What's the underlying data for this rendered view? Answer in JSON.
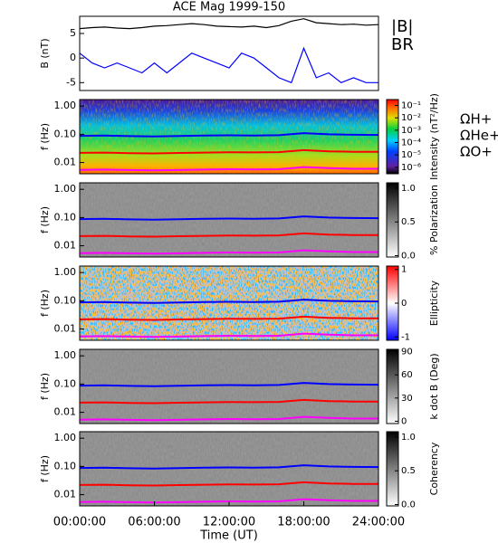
{
  "chart_data": [
    {
      "type": "line",
      "title": "ACE Mag 1999-150",
      "y_label": "B (nT)",
      "xlim": [
        0,
        24
      ],
      "ylim": [
        -6.6,
        8.5
      ],
      "yticks": [
        -5,
        0,
        5
      ],
      "x": [
        0,
        1,
        2,
        3,
        4,
        5,
        6,
        7,
        8,
        9,
        10,
        11,
        12,
        13,
        14,
        15,
        16,
        17,
        18,
        19,
        20,
        21,
        22,
        23,
        24
      ],
      "series": [
        {
          "name": "|B|",
          "color": "#000000",
          "values": [
            6,
            6.2,
            6.3,
            6.1,
            6,
            6.2,
            6.5,
            6.6,
            6.8,
            7,
            6.8,
            6.5,
            6.4,
            6.3,
            6.5,
            6.2,
            6.6,
            7.5,
            8,
            7.2,
            7,
            6.8,
            6.9,
            6.7,
            6.8
          ]
        },
        {
          "name": "BR",
          "color": "#0000ff",
          "values": [
            1,
            -1,
            -2,
            -1,
            -2,
            -3,
            -1,
            -3,
            -1,
            1,
            0,
            -1,
            -2,
            1,
            0,
            -2,
            -4,
            -5,
            2,
            -4,
            -3,
            -5,
            -4,
            -5,
            -5
          ]
        }
      ]
    },
    {
      "type": "spectrogram",
      "y_label": "f (Hz)",
      "log_y": true,
      "xlim": [
        0,
        24
      ],
      "ylim": [
        0.004,
        1.7
      ],
      "yticks": [
        {
          "value": 1,
          "label": "1.00"
        },
        {
          "value": 0.1,
          "label": "0.10"
        },
        {
          "value": 0.01,
          "label": "0.01"
        }
      ],
      "colormap": "rainbow",
      "colorbar_label": "Intensity (nT²/Hz)",
      "log_c": true,
      "clim": [
        3e-07,
        0.3
      ],
      "cticks": [
        {
          "value": 0.1,
          "label": "10⁻¹"
        },
        {
          "value": 0.01,
          "label": "10⁻²"
        },
        {
          "value": 0.001,
          "label": "10⁻³"
        },
        {
          "value": 0.0001,
          "label": "10⁻⁴"
        },
        {
          "value": 1e-05,
          "label": "10⁻⁵"
        },
        {
          "value": 1e-06,
          "label": "10⁻⁶"
        }
      ],
      "x": [
        0,
        2,
        4,
        6,
        8,
        10,
        12,
        14,
        16,
        18,
        20,
        22,
        24
      ],
      "series": [
        {
          "name": "ΩH+",
          "color": "#0000ff",
          "values": [
            0.088,
            0.09,
            0.086,
            0.084,
            0.087,
            0.09,
            0.092,
            0.091,
            0.093,
            0.11,
            0.1,
            0.096,
            0.095
          ]
        },
        {
          "name": "ΩHe+",
          "color": "#ff0000",
          "values": [
            0.022,
            0.0225,
            0.0215,
            0.021,
            0.0218,
            0.0225,
            0.023,
            0.0228,
            0.0233,
            0.0275,
            0.025,
            0.024,
            0.024
          ]
        },
        {
          "name": "ΩO+",
          "color": "#ff00ff",
          "values": [
            0.0055,
            0.0056,
            0.0054,
            0.0053,
            0.0054,
            0.0056,
            0.0058,
            0.0057,
            0.0058,
            0.0069,
            0.0063,
            0.006,
            0.006
          ]
        }
      ]
    },
    {
      "type": "spectrogram",
      "y_label": "f (Hz)",
      "log_y": true,
      "xlim": [
        0,
        24
      ],
      "ylim": [
        0.004,
        1.7
      ],
      "yticks": [
        {
          "value": 1,
          "label": "1.00"
        },
        {
          "value": 0.1,
          "label": "0.10"
        },
        {
          "value": 0.01,
          "label": "0.01"
        }
      ],
      "colormap": "gray",
      "colorbar_label": "% Polarization",
      "clim": [
        -0.02,
        1.08
      ],
      "cticks": [
        {
          "value": 0,
          "label": "0.0"
        },
        0.5,
        {
          "value": 1,
          "label": "1.0"
        }
      ],
      "x": [
        0,
        2,
        4,
        6,
        8,
        10,
        12,
        14,
        16,
        18,
        20,
        22,
        24
      ],
      "series": [
        {
          "color": "#0000ff",
          "values": [
            0.088,
            0.09,
            0.086,
            0.084,
            0.087,
            0.09,
            0.092,
            0.091,
            0.093,
            0.11,
            0.1,
            0.096,
            0.095
          ]
        },
        {
          "color": "#ff0000",
          "values": [
            0.022,
            0.0225,
            0.0215,
            0.021,
            0.0218,
            0.0225,
            0.023,
            0.0228,
            0.0233,
            0.0275,
            0.025,
            0.024,
            0.024
          ]
        },
        {
          "color": "#ff00ff",
          "values": [
            0.0055,
            0.0056,
            0.0054,
            0.0053,
            0.0054,
            0.0056,
            0.0058,
            0.0057,
            0.0058,
            0.0069,
            0.0063,
            0.006,
            0.006
          ]
        }
      ]
    },
    {
      "type": "spectrogram",
      "y_label": "f (Hz)",
      "log_y": true,
      "xlim": [
        0,
        24
      ],
      "ylim": [
        0.004,
        1.7
      ],
      "yticks": [
        {
          "value": 1,
          "label": "1.00"
        },
        {
          "value": 0.1,
          "label": "0.10"
        },
        {
          "value": 0.01,
          "label": "0.01"
        }
      ],
      "colormap": "bwr",
      "colorbar_label": "Ellipticity",
      "clim": [
        -1.1,
        1.1
      ],
      "cticks": [
        -1,
        0,
        1
      ],
      "x": [
        0,
        2,
        4,
        6,
        8,
        10,
        12,
        14,
        16,
        18,
        20,
        22,
        24
      ],
      "series": [
        {
          "color": "#0000ff",
          "values": [
            0.088,
            0.09,
            0.086,
            0.084,
            0.087,
            0.09,
            0.092,
            0.091,
            0.093,
            0.11,
            0.1,
            0.096,
            0.095
          ]
        },
        {
          "color": "#ff0000",
          "values": [
            0.022,
            0.0225,
            0.0215,
            0.021,
            0.0218,
            0.0225,
            0.023,
            0.0228,
            0.0233,
            0.0275,
            0.025,
            0.024,
            0.024
          ]
        },
        {
          "color": "#ff00ff",
          "values": [
            0.0055,
            0.0056,
            0.0054,
            0.0053,
            0.0054,
            0.0056,
            0.0058,
            0.0057,
            0.0058,
            0.0069,
            0.0063,
            0.006,
            0.006
          ]
        }
      ]
    },
    {
      "type": "spectrogram",
      "y_label": "f (Hz)",
      "log_y": true,
      "xlim": [
        0,
        24
      ],
      "ylim": [
        0.004,
        1.7
      ],
      "yticks": [
        {
          "value": 1,
          "label": "1.00"
        },
        {
          "value": 0.1,
          "label": "0.10"
        },
        {
          "value": 0.01,
          "label": "0.01"
        }
      ],
      "colormap": "gray",
      "colorbar_label": "k dot B (Deg)",
      "clim": [
        -3,
        93
      ],
      "cticks": [
        0,
        30,
        60,
        90
      ],
      "x": [
        0,
        2,
        4,
        6,
        8,
        10,
        12,
        14,
        16,
        18,
        20,
        22,
        24
      ],
      "series": [
        {
          "color": "#0000ff",
          "values": [
            0.088,
            0.09,
            0.086,
            0.084,
            0.087,
            0.09,
            0.092,
            0.091,
            0.093,
            0.11,
            0.1,
            0.096,
            0.095
          ]
        },
        {
          "color": "#ff0000",
          "values": [
            0.022,
            0.0225,
            0.0215,
            0.021,
            0.0218,
            0.0225,
            0.023,
            0.0228,
            0.0233,
            0.0275,
            0.025,
            0.024,
            0.024
          ]
        },
        {
          "color": "#ff00ff",
          "values": [
            0.0055,
            0.0056,
            0.0054,
            0.0053,
            0.0054,
            0.0056,
            0.0058,
            0.0057,
            0.0058,
            0.0069,
            0.0063,
            0.006,
            0.006
          ]
        }
      ]
    },
    {
      "type": "spectrogram",
      "y_label": "f (Hz)",
      "log_y": true,
      "xlim": [
        0,
        24
      ],
      "ylim": [
        0.004,
        1.7
      ],
      "yticks": [
        {
          "value": 1,
          "label": "1.00"
        },
        {
          "value": 0.1,
          "label": "0.10"
        },
        {
          "value": 0.01,
          "label": "0.01"
        }
      ],
      "colormap": "gray",
      "colorbar_label": "Coherency",
      "clim": [
        -0.02,
        1.08
      ],
      "cticks": [
        {
          "value": 0,
          "label": "0.0"
        },
        0.5,
        {
          "value": 1,
          "label": "1.0"
        }
      ],
      "x_label": "Time (UT)",
      "xticks": [
        {
          "value": 0,
          "label": "00:00:00"
        },
        {
          "value": 6,
          "label": "06:00:00"
        },
        {
          "value": 12,
          "label": "12:00:00"
        },
        {
          "value": 18,
          "label": "18:00:00"
        },
        {
          "value": 24,
          "label": "24:00:00"
        }
      ],
      "x": [
        0,
        2,
        4,
        6,
        8,
        10,
        12,
        14,
        16,
        18,
        20,
        22,
        24
      ],
      "series": [
        {
          "color": "#0000ff",
          "values": [
            0.088,
            0.09,
            0.086,
            0.084,
            0.087,
            0.09,
            0.092,
            0.091,
            0.093,
            0.11,
            0.1,
            0.096,
            0.095
          ]
        },
        {
          "color": "#ff0000",
          "values": [
            0.022,
            0.0225,
            0.0215,
            0.021,
            0.0218,
            0.0225,
            0.023,
            0.0228,
            0.0233,
            0.0275,
            0.025,
            0.024,
            0.024
          ]
        },
        {
          "color": "#ff00ff",
          "values": [
            0.0055,
            0.0056,
            0.0054,
            0.0053,
            0.0054,
            0.0056,
            0.0058,
            0.0057,
            0.0058,
            0.0069,
            0.0063,
            0.006,
            0.006
          ]
        }
      ]
    }
  ]
}
